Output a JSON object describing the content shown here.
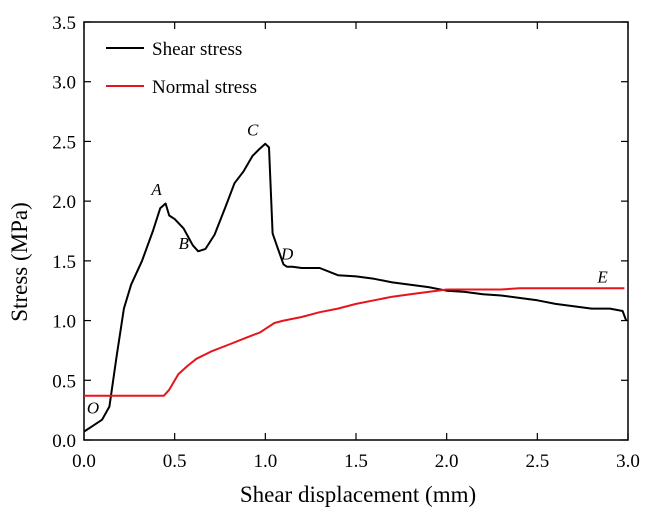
{
  "colors": {
    "shear": "#000000",
    "normal": "#e8141c",
    "axis": "#000000",
    "background": "#ffffff"
  },
  "chart_data": {
    "type": "line",
    "xlabel": "Shear displacement (mm)",
    "ylabel": "Stress (MPa)",
    "xlim": [
      0.0,
      3.0
    ],
    "ylim": [
      0.0,
      3.5
    ],
    "xticks": [
      "0.0",
      "0.5",
      "1.0",
      "1.5",
      "2.0",
      "2.5",
      "3.0"
    ],
    "yticks": [
      "0.0",
      "0.5",
      "1.0",
      "1.5",
      "2.0",
      "2.5",
      "3.0",
      "3.5"
    ],
    "grid": false,
    "legend": "top-left",
    "series": [
      {
        "name": "Shear stress",
        "color": "#000000",
        "x": [
          0.0,
          0.05,
          0.1,
          0.14,
          0.18,
          0.22,
          0.26,
          0.32,
          0.38,
          0.42,
          0.45,
          0.47,
          0.5,
          0.55,
          0.6,
          0.63,
          0.67,
          0.72,
          0.78,
          0.83,
          0.88,
          0.93,
          0.97,
          1.0,
          1.02,
          1.04,
          1.07,
          1.1,
          1.12,
          1.15,
          1.2,
          1.3,
          1.4,
          1.5,
          1.6,
          1.7,
          1.8,
          1.9,
          2.0,
          2.1,
          2.2,
          2.3,
          2.4,
          2.5,
          2.6,
          2.7,
          2.8,
          2.9,
          2.97,
          2.99
        ],
        "y": [
          0.07,
          0.12,
          0.17,
          0.28,
          0.7,
          1.1,
          1.3,
          1.5,
          1.75,
          1.94,
          1.98,
          1.88,
          1.85,
          1.77,
          1.63,
          1.58,
          1.6,
          1.72,
          1.95,
          2.15,
          2.25,
          2.38,
          2.44,
          2.48,
          2.45,
          1.73,
          1.6,
          1.47,
          1.45,
          1.45,
          1.44,
          1.44,
          1.38,
          1.37,
          1.35,
          1.32,
          1.3,
          1.28,
          1.25,
          1.24,
          1.22,
          1.21,
          1.19,
          1.17,
          1.14,
          1.12,
          1.1,
          1.1,
          1.08,
          1.0
        ]
      },
      {
        "name": "Normal stress",
        "color": "#e8141c",
        "x": [
          0.0,
          0.1,
          0.2,
          0.3,
          0.44,
          0.47,
          0.52,
          0.57,
          0.62,
          0.7,
          0.8,
          0.9,
          0.97,
          1.0,
          1.05,
          1.1,
          1.2,
          1.3,
          1.4,
          1.5,
          1.6,
          1.7,
          1.8,
          1.9,
          2.0,
          2.1,
          2.2,
          2.3,
          2.4,
          2.6,
          2.8,
          2.98
        ],
        "y": [
          0.37,
          0.37,
          0.37,
          0.37,
          0.37,
          0.42,
          0.55,
          0.62,
          0.68,
          0.74,
          0.8,
          0.86,
          0.9,
          0.93,
          0.98,
          1.0,
          1.03,
          1.07,
          1.1,
          1.14,
          1.17,
          1.2,
          1.22,
          1.24,
          1.26,
          1.26,
          1.26,
          1.26,
          1.27,
          1.27,
          1.27,
          1.27
        ]
      }
    ],
    "annotations": [
      {
        "text": "O",
        "x": 0.05,
        "y": 0.22
      },
      {
        "text": "A",
        "x": 0.4,
        "y": 2.05
      },
      {
        "text": "B",
        "x": 0.55,
        "y": 1.6
      },
      {
        "text": "C",
        "x": 0.93,
        "y": 2.55
      },
      {
        "text": "D",
        "x": 1.12,
        "y": 1.51
      },
      {
        "text": "E",
        "x": 2.86,
        "y": 1.32
      }
    ]
  }
}
